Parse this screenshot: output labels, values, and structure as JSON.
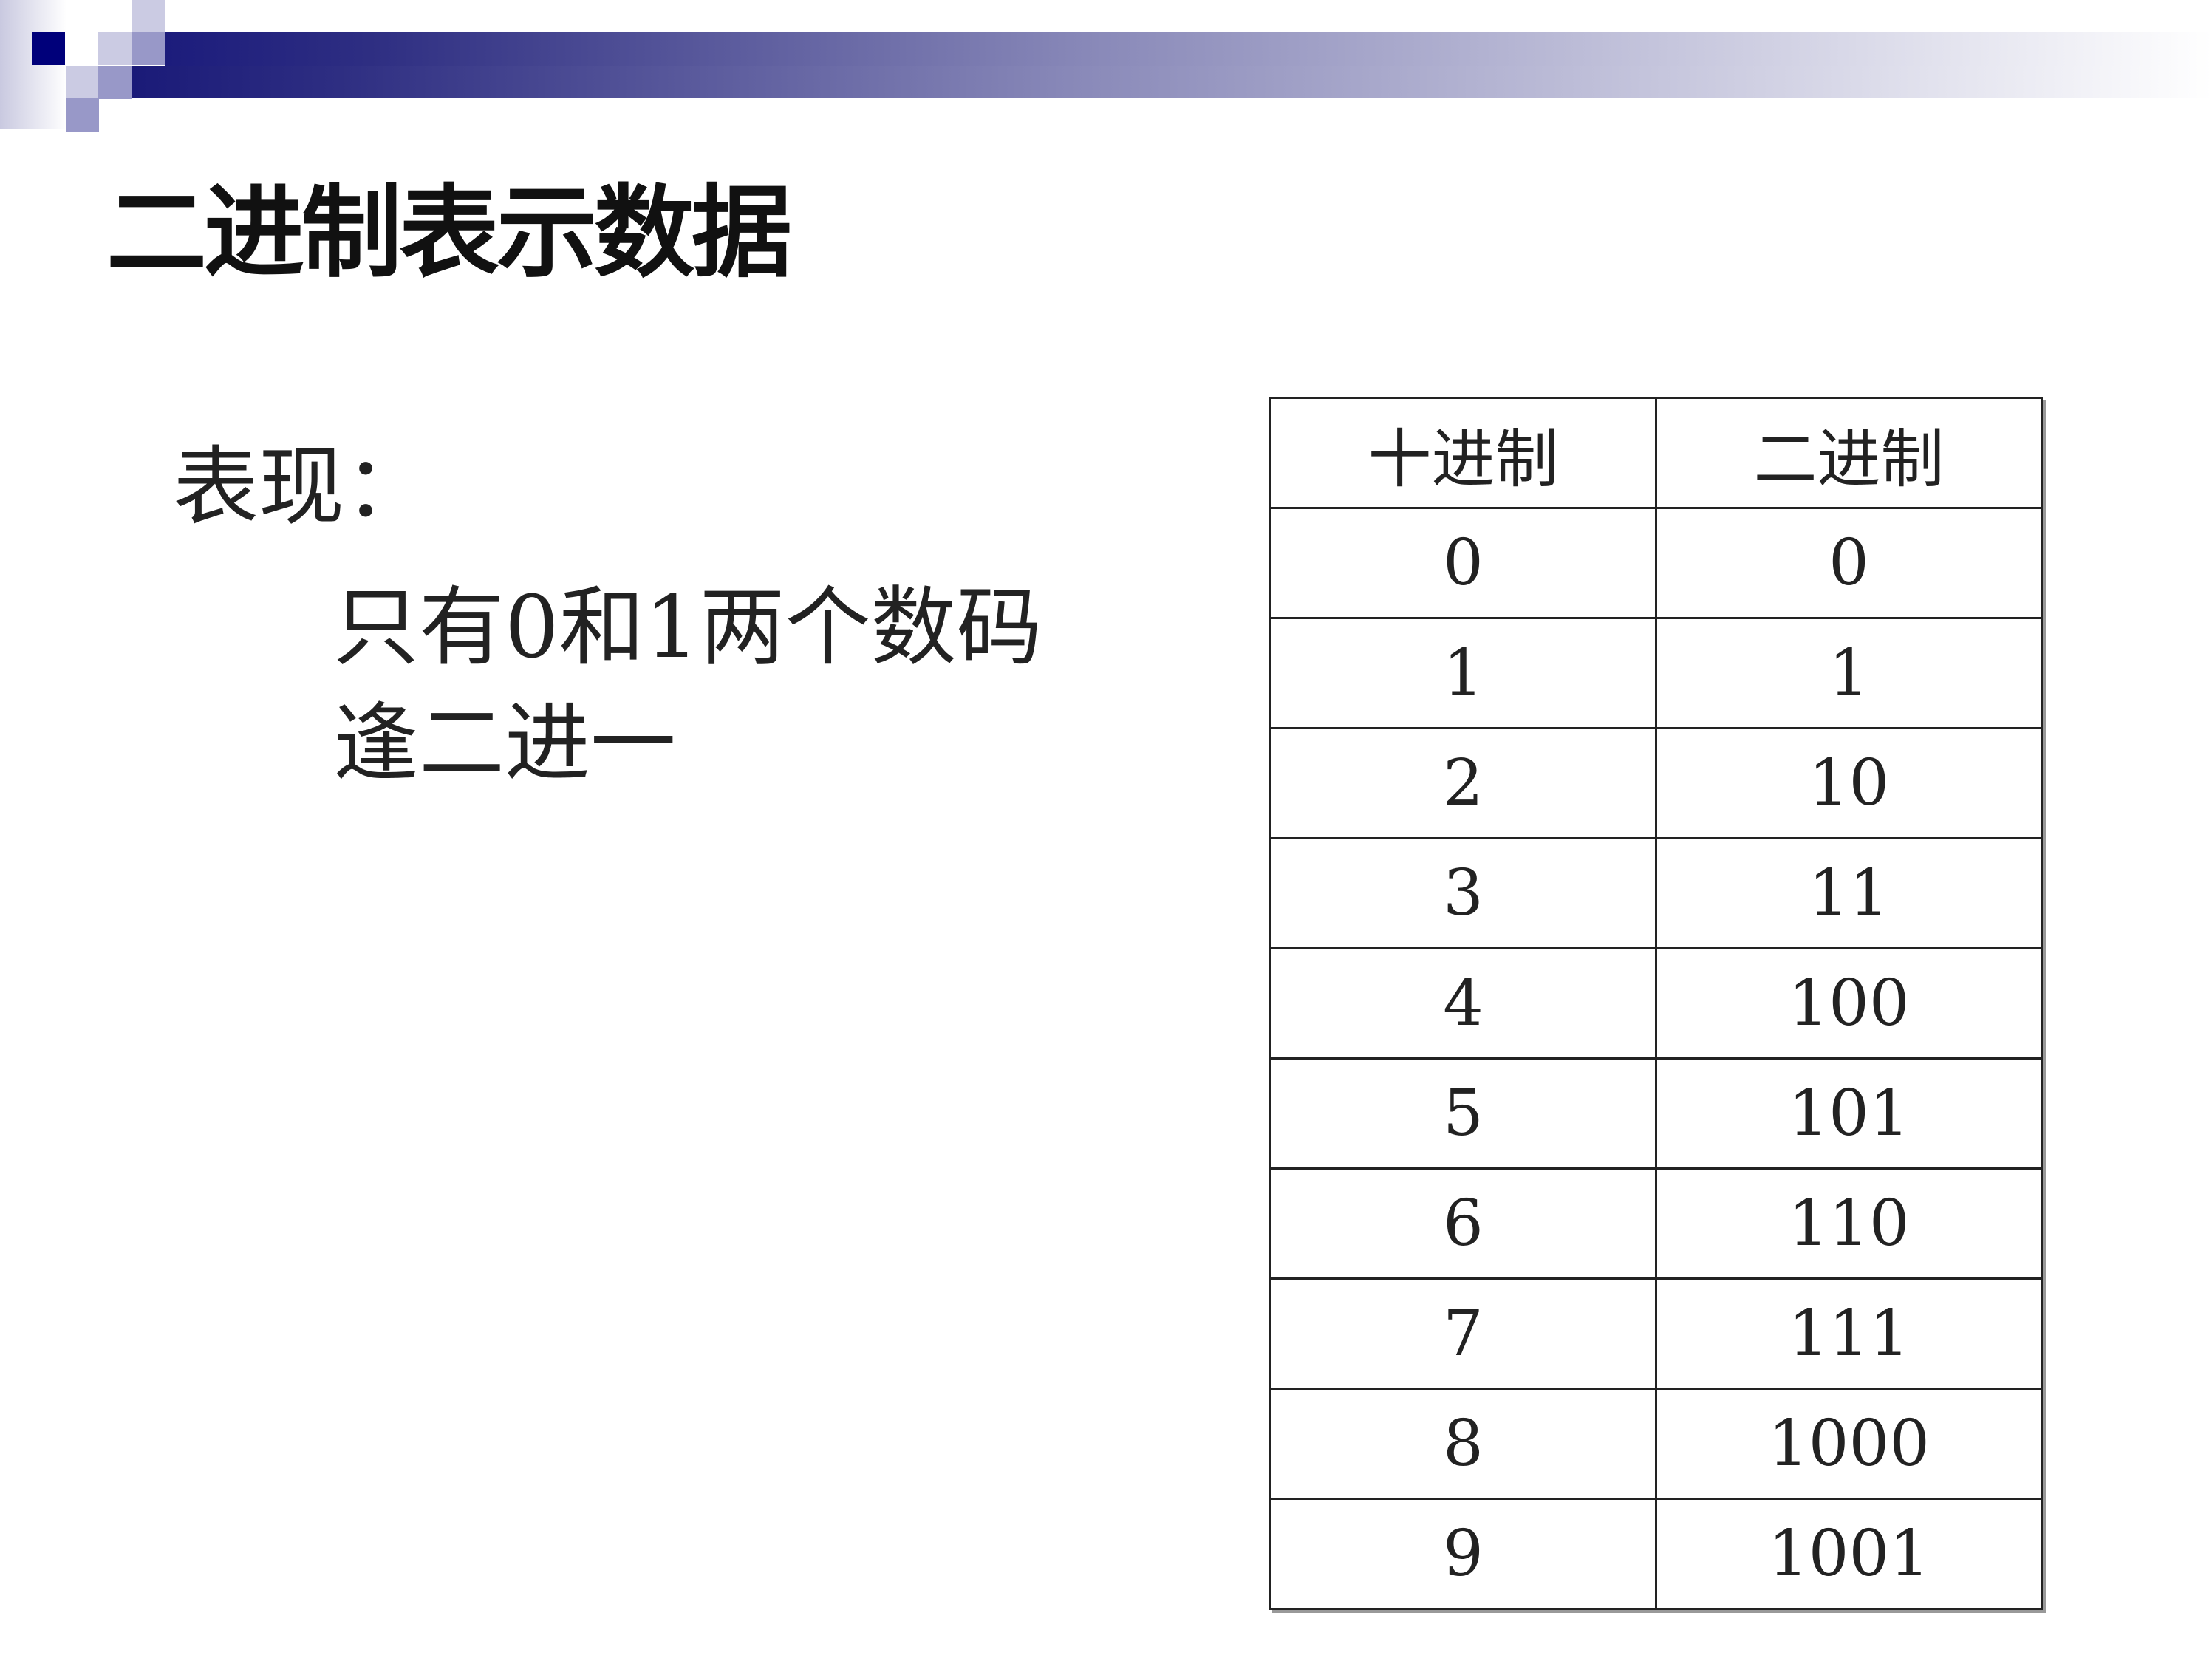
{
  "title": "二进制表示数据",
  "body": {
    "label": "表现：",
    "lines": [
      "只有0和1两个数码",
      "逢二进一"
    ]
  },
  "table": {
    "headers": [
      "十进制",
      "二进制"
    ],
    "rows": [
      [
        "0",
        "0"
      ],
      [
        "1",
        "1"
      ],
      [
        "2",
        "10"
      ],
      [
        "3",
        "11"
      ],
      [
        "4",
        "100"
      ],
      [
        "5",
        "101"
      ],
      [
        "6",
        "110"
      ],
      [
        "7",
        "111"
      ],
      [
        "8",
        "1000"
      ],
      [
        "9",
        "1001"
      ]
    ]
  },
  "colors": {
    "accent": "#1c1c7c",
    "light": "#c9c9e0",
    "mid": "#9898c8"
  }
}
